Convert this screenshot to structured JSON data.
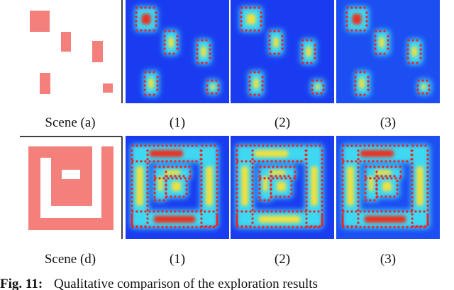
{
  "figure": {
    "rows": [
      {
        "labels": [
          "Scene (a)",
          "(1)",
          "(2)",
          "(3)"
        ]
      },
      {
        "labels": [
          "Scene (d)",
          "(1)",
          "(2)",
          "(3)"
        ]
      }
    ],
    "caption": {
      "label": "Fig. 11:",
      "text": "Qualitative comparison of the exploration results"
    }
  }
}
